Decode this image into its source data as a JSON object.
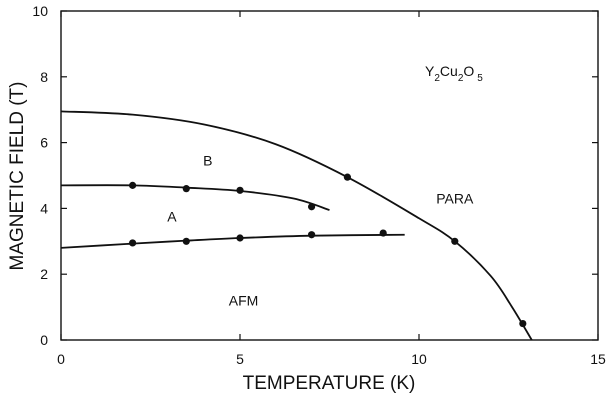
{
  "chart_data": {
    "type": "line",
    "title": "",
    "xlabel": "TEMPERATURE (K)",
    "ylabel": "MAGNETIC FIELD (T)",
    "xlim": [
      0,
      15
    ],
    "ylim": [
      0,
      10
    ],
    "x_ticks": [
      0,
      5,
      10,
      15
    ],
    "y_ticks": [
      0,
      2,
      4,
      6,
      8,
      10
    ],
    "grid": false,
    "legend": "none",
    "compound": {
      "base1": "Y",
      "sub1": "2",
      "base2": "Cu",
      "sub2": "2",
      "base3": "O",
      "sub3": "5"
    },
    "region_labels": [
      {
        "text": "B",
        "x": 4.1,
        "y": 5.3
      },
      {
        "text": "A",
        "x": 3.1,
        "y": 3.6
      },
      {
        "text": "PARA",
        "x": 11.0,
        "y": 4.15
      },
      {
        "text": "AFM",
        "x": 5.1,
        "y": 1.05
      }
    ],
    "series": [
      {
        "points": [
          [
            2,
            4.7
          ],
          [
            3.5,
            4.6
          ],
          [
            5,
            4.55
          ],
          [
            7,
            4.05
          ]
        ],
        "curve": [
          [
            0,
            4.7
          ],
          [
            2,
            4.7
          ],
          [
            3.5,
            4.63
          ],
          [
            5,
            4.53
          ],
          [
            6.5,
            4.3
          ],
          [
            7.5,
            3.95
          ]
        ]
      },
      {
        "points": [
          [
            2,
            2.95
          ],
          [
            3.5,
            3.0
          ],
          [
            5,
            3.1
          ],
          [
            7,
            3.2
          ],
          [
            9,
            3.25
          ]
        ],
        "curve": [
          [
            0,
            2.8
          ],
          [
            2,
            2.93
          ],
          [
            3.5,
            3.02
          ],
          [
            5,
            3.1
          ],
          [
            7,
            3.17
          ],
          [
            9.6,
            3.2
          ]
        ]
      },
      {
        "points": [
          [
            8,
            4.95
          ],
          [
            11,
            3.0
          ],
          [
            12.9,
            0.5
          ]
        ],
        "curve": [
          [
            0,
            6.95
          ],
          [
            2,
            6.85
          ],
          [
            4,
            6.55
          ],
          [
            6,
            5.95
          ],
          [
            8,
            4.95
          ],
          [
            10,
            3.7
          ],
          [
            11,
            3.0
          ],
          [
            12,
            1.95
          ],
          [
            12.6,
            1.0
          ],
          [
            13.15,
            0
          ]
        ]
      }
    ]
  }
}
